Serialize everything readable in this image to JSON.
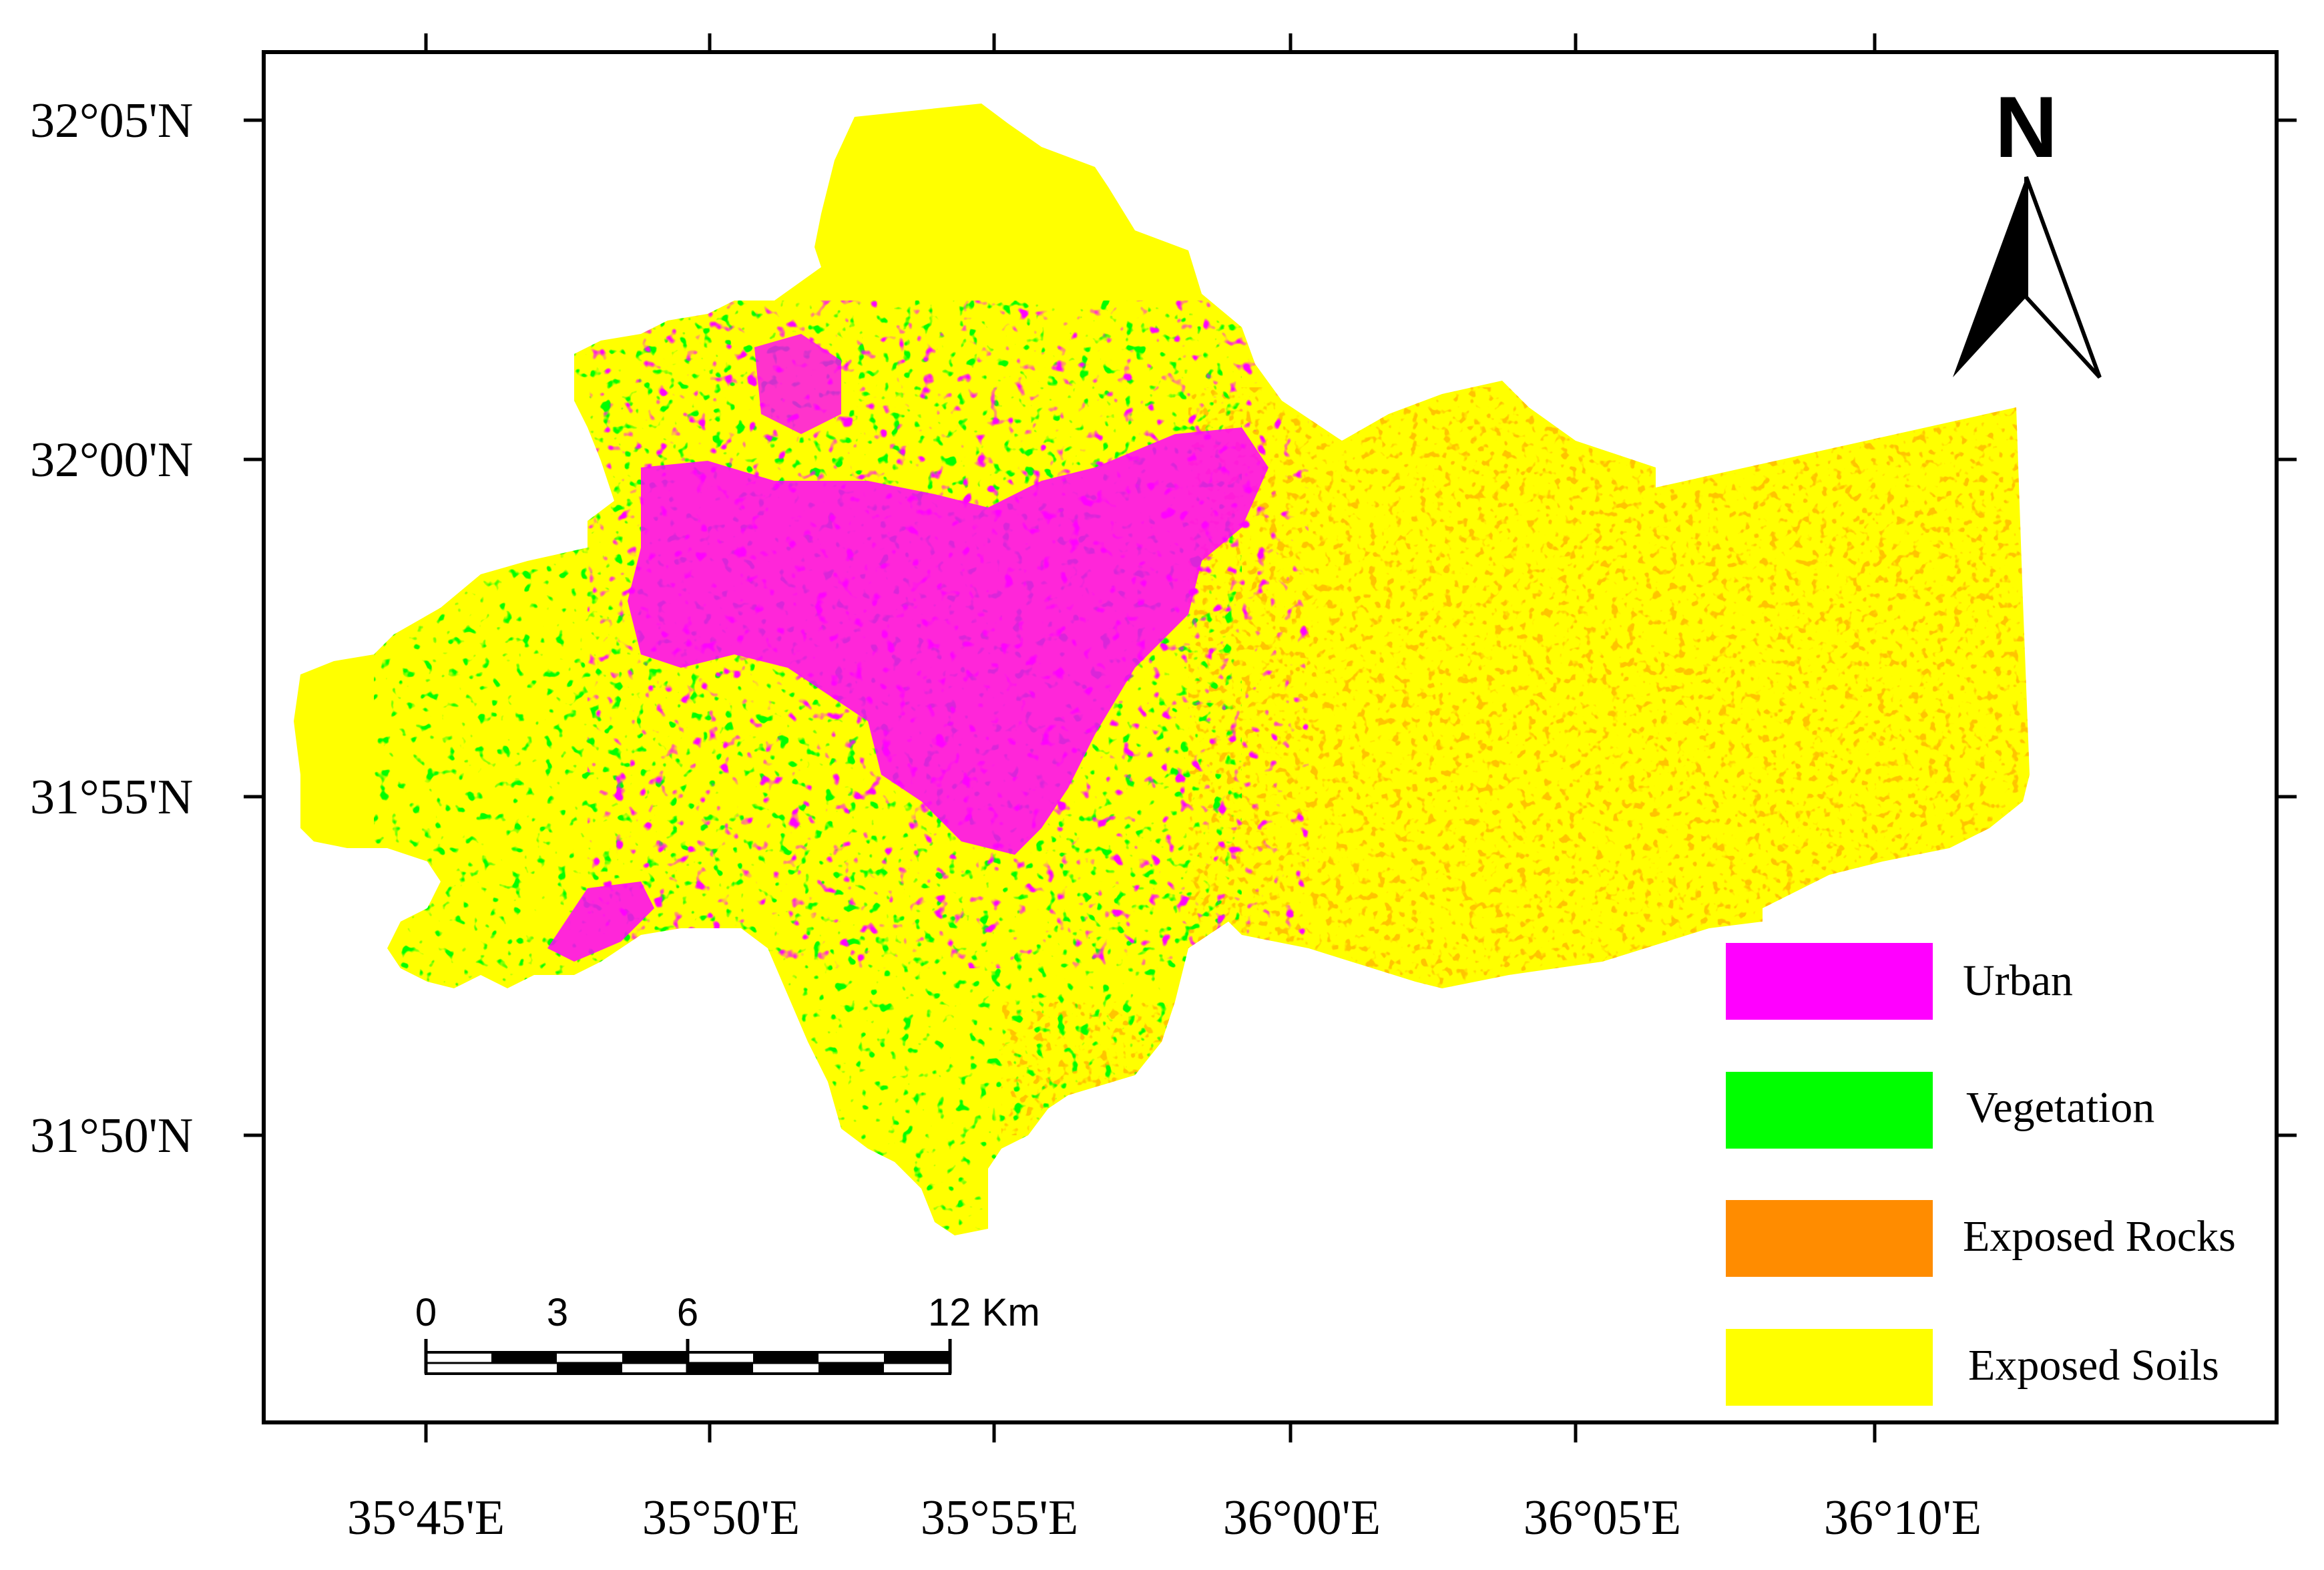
{
  "map": {
    "lat_labels": [
      "32°05'N",
      "32°00'N",
      "31°55'N",
      "31°50'N"
    ],
    "lon_labels": [
      "35°45'E",
      "35°50'E",
      "35°55'E",
      "36°00'E",
      "36°05'E",
      "36°10'E"
    ],
    "north_label": "N",
    "scale_bar": {
      "labels": [
        "0",
        "3",
        "6",
        "12 Km"
      ]
    },
    "legend": [
      {
        "label": "Urban",
        "color": "#ff00ff"
      },
      {
        "label": "Vegetation",
        "color": "#00ff00"
      },
      {
        "label": "Exposed Rocks",
        "color": "#ff8c00"
      },
      {
        "label": "Exposed Soils",
        "color": "#ffff00"
      }
    ],
    "colors": {
      "urban": "#ff00ff",
      "vegetation": "#00ff00",
      "rocks": "#ff8c00",
      "soils": "#ffff00",
      "frame": "#000000"
    }
  }
}
